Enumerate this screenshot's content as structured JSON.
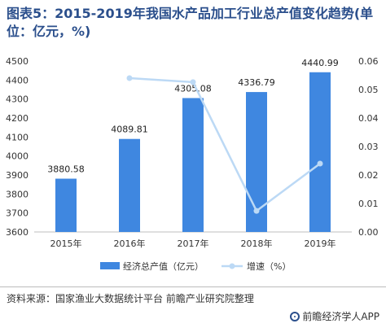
{
  "title": "图表5：2015-2019年我国水产品加工行业总产值变化趋势(单位：亿元，%)",
  "source": "资料来源：国家渔业大数据统计平台 前瞻产业研究院整理",
  "brand": "前瞻经济学人APP",
  "chart_data": {
    "type": "bar",
    "categories": [
      "2015年",
      "2016年",
      "2017年",
      "2018年",
      "2019年"
    ],
    "series": [
      {
        "name": "经济总产值（亿元）",
        "type": "bar",
        "axis": "left",
        "color": "#3f87e0",
        "values": [
          3880.58,
          4089.81,
          4305.08,
          4336.79,
          4440.99
        ],
        "labels": [
          "3880.58",
          "4089.81",
          "4305.08",
          "4336.79",
          "4440.99"
        ]
      },
      {
        "name": "增速（%）",
        "type": "line",
        "axis": "right",
        "color": "#bcd9f5",
        "values": [
          null,
          0.054,
          0.0526,
          0.0074,
          0.024
        ]
      }
    ],
    "y_left": {
      "min": 3600,
      "max": 4500,
      "ticks": [
        "3600",
        "3700",
        "3800",
        "3900",
        "4000",
        "4100",
        "4200",
        "4300",
        "4400",
        "4500"
      ]
    },
    "y_right": {
      "min": 0,
      "max": 0.06,
      "ticks": [
        "0.00",
        "0.01",
        "0.02",
        "0.03",
        "0.04",
        "0.05",
        "0.06"
      ]
    }
  }
}
